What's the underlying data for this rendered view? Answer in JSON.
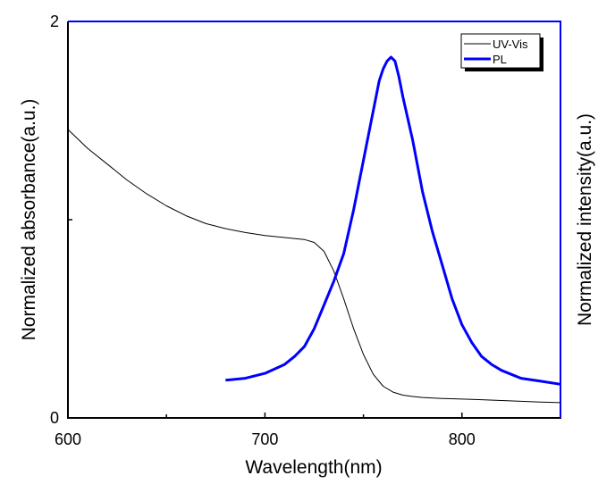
{
  "chart_data": {
    "type": "line",
    "title": "",
    "xlabel": "Wavelength(nm)",
    "ylabel_left": "Normalized absorbance(a.u.)",
    "ylabel_right": "Normalized intensity(a.u.)",
    "xlim": [
      600,
      850
    ],
    "ylim": [
      0,
      2
    ],
    "x_ticks": [
      {
        "value": 600,
        "label": "600"
      },
      {
        "value": 700,
        "label": "700"
      },
      {
        "value": 800,
        "label": "800"
      }
    ],
    "x_minor_ticks": [
      650,
      750
    ],
    "y_ticks": [
      {
        "value": 0,
        "label": "0"
      },
      {
        "value": 2,
        "label": "2"
      }
    ],
    "y_minor_ticks": [
      1
    ],
    "grid": false,
    "legend_position": "top-right",
    "colors": {
      "left_axis": "#000000",
      "right_axis": "#0000ff",
      "uvvis": "#000000",
      "pl": "#0000ff"
    },
    "series": [
      {
        "name": "UV-Vis",
        "x": [
          600,
          610,
          620,
          630,
          640,
          650,
          660,
          670,
          680,
          690,
          700,
          710,
          720,
          725,
          730,
          735,
          740,
          745,
          750,
          755,
          760,
          765,
          770,
          775,
          780,
          790,
          800,
          810,
          820,
          830,
          840,
          850
        ],
        "y": [
          1.455,
          1.36,
          1.28,
          1.2,
          1.13,
          1.07,
          1.02,
          0.98,
          0.955,
          0.935,
          0.92,
          0.91,
          0.9,
          0.885,
          0.84,
          0.74,
          0.6,
          0.45,
          0.32,
          0.22,
          0.16,
          0.13,
          0.115,
          0.108,
          0.103,
          0.098,
          0.095,
          0.092,
          0.088,
          0.084,
          0.08,
          0.077
        ]
      },
      {
        "name": "PL",
        "x": [
          680,
          690,
          700,
          710,
          715,
          720,
          725,
          730,
          735,
          740,
          745,
          750,
          755,
          758,
          760,
          762,
          764,
          766,
          768,
          770,
          775,
          780,
          785,
          790,
          795,
          800,
          805,
          810,
          815,
          820,
          825,
          830,
          840,
          850
        ],
        "y": [
          0.19,
          0.2,
          0.225,
          0.27,
          0.31,
          0.36,
          0.45,
          0.57,
          0.69,
          0.83,
          1.05,
          1.3,
          1.55,
          1.7,
          1.76,
          1.8,
          1.82,
          1.8,
          1.72,
          1.62,
          1.4,
          1.14,
          0.94,
          0.77,
          0.6,
          0.47,
          0.38,
          0.31,
          0.27,
          0.24,
          0.22,
          0.2,
          0.185,
          0.17
        ]
      }
    ]
  }
}
